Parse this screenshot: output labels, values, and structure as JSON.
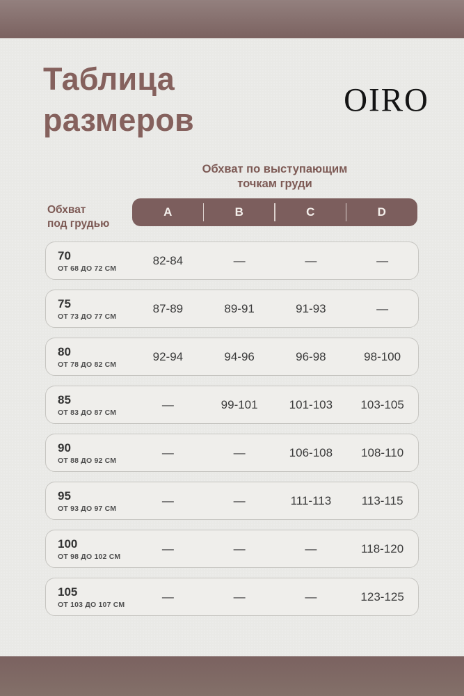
{
  "page": {
    "title": "Таблица\nразмеров",
    "brand": "OIRO"
  },
  "table": {
    "col_group_header": "Обхват по выступающим\nточкам груди",
    "row_group_header": "Обхват\nпод грудью",
    "columns": [
      "A",
      "B",
      "C",
      "D"
    ],
    "empty_marker": "—",
    "rows": [
      {
        "size": "70",
        "range": "ОТ 68 ДО 72 СМ",
        "values": [
          "82-84",
          "—",
          "—",
          "—"
        ]
      },
      {
        "size": "75",
        "range": "ОТ 73 ДО 77 СМ",
        "values": [
          "87-89",
          "89-91",
          "91-93",
          "—"
        ]
      },
      {
        "size": "80",
        "range": "ОТ 78 ДО 82 СМ",
        "values": [
          "92-94",
          "94-96",
          "96-98",
          "98-100"
        ]
      },
      {
        "size": "85",
        "range": "ОТ 83 ДО 87 СМ",
        "values": [
          "—",
          "99-101",
          "101-103",
          "103-105"
        ]
      },
      {
        "size": "90",
        "range": "ОТ 88 ДО 92 СМ",
        "values": [
          "—",
          "—",
          "106-108",
          "108-110"
        ]
      },
      {
        "size": "95",
        "range": "ОТ 93 ДО 97 СМ",
        "values": [
          "—",
          "—",
          "111-113",
          "113-115"
        ]
      },
      {
        "size": "100",
        "range": "ОТ 98 ДО 102 СМ",
        "values": [
          "—",
          "—",
          "—",
          "118-120"
        ]
      },
      {
        "size": "105",
        "range": "ОТ 103 ДО 107 СМ",
        "values": [
          "—",
          "—",
          "—",
          "123-125"
        ]
      }
    ]
  },
  "colors": {
    "accent_mauve": "#7c5e5d",
    "bar_mauve": "#7e6563",
    "title_maroon": "#85615d",
    "header_maroon": "#7d5a55",
    "background_paper": "#e9e9e6",
    "card_background": "#efeeeb",
    "card_border": "#c6c5c1",
    "pill_text": "#f4efeb",
    "body_text": "#3a3a3a"
  }
}
